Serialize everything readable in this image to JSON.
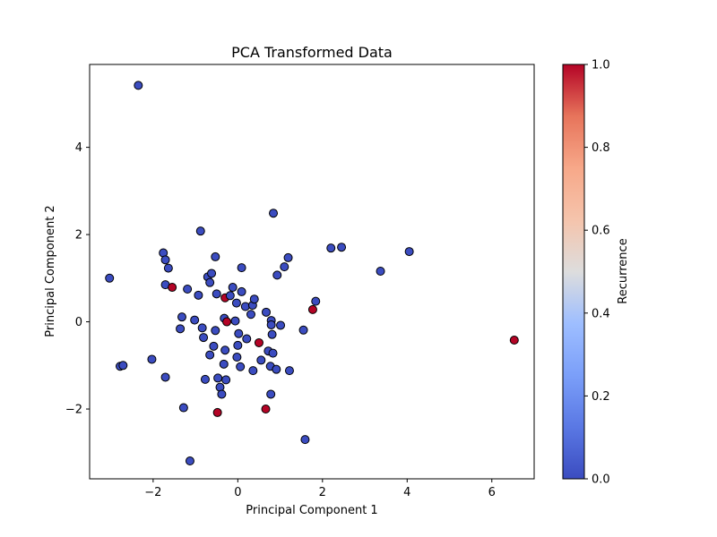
{
  "chart_data": {
    "type": "scatter",
    "title": "PCA Transformed Data",
    "xlabel": "Principal Component 1",
    "ylabel": "Principal Component 2",
    "xlim": [
      -3.5,
      7.0
    ],
    "ylim": [
      -3.6,
      5.9
    ],
    "xticks": [
      -2,
      0,
      2,
      4,
      6
    ],
    "yticks": [
      -2,
      0,
      2,
      4
    ],
    "grid": false,
    "colorbar": {
      "label": "Recurrence",
      "range": [
        0.0,
        1.0
      ],
      "ticks": [
        0.0,
        0.2,
        0.4,
        0.6,
        0.8,
        1.0
      ],
      "colormap": "coolwarm",
      "low_color": "#3b4cc0",
      "mid_color": "#dddddd",
      "high_color": "#b40426"
    },
    "points": [
      {
        "x": -2.35,
        "y": 5.42,
        "c": 0
      },
      {
        "x": -3.03,
        "y": 1.0,
        "c": 0
      },
      {
        "x": -2.78,
        "y": -1.02,
        "c": 0
      },
      {
        "x": -2.71,
        "y": -1.0,
        "c": 0
      },
      {
        "x": -2.03,
        "y": -0.86,
        "c": 0
      },
      {
        "x": -1.76,
        "y": 1.58,
        "c": 0
      },
      {
        "x": -1.71,
        "y": 1.42,
        "c": 0
      },
      {
        "x": -1.64,
        "y": 1.23,
        "c": 0
      },
      {
        "x": -1.71,
        "y": 0.85,
        "c": 0
      },
      {
        "x": -1.55,
        "y": 0.79,
        "c": 1
      },
      {
        "x": -1.71,
        "y": -1.27,
        "c": 0
      },
      {
        "x": -1.28,
        "y": -1.97,
        "c": 0
      },
      {
        "x": -1.13,
        "y": -3.19,
        "c": 0
      },
      {
        "x": -1.32,
        "y": 0.11,
        "c": 0
      },
      {
        "x": -1.36,
        "y": -0.16,
        "c": 0
      },
      {
        "x": -1.19,
        "y": 0.75,
        "c": 0
      },
      {
        "x": -1.02,
        "y": 0.04,
        "c": 0
      },
      {
        "x": -0.93,
        "y": 0.61,
        "c": 0
      },
      {
        "x": -0.88,
        "y": 2.08,
        "c": 0
      },
      {
        "x": -0.84,
        "y": -0.14,
        "c": 0
      },
      {
        "x": -0.81,
        "y": -0.36,
        "c": 0
      },
      {
        "x": -0.77,
        "y": -1.32,
        "c": 0
      },
      {
        "x": -0.71,
        "y": 1.03,
        "c": 0
      },
      {
        "x": -0.62,
        "y": 1.11,
        "c": 0
      },
      {
        "x": -0.66,
        "y": 0.9,
        "c": 0
      },
      {
        "x": -0.66,
        "y": -0.76,
        "c": 0
      },
      {
        "x": -0.57,
        "y": -0.56,
        "c": 0
      },
      {
        "x": -0.53,
        "y": 1.49,
        "c": 0
      },
      {
        "x": -0.5,
        "y": 0.64,
        "c": 0
      },
      {
        "x": -0.53,
        "y": -0.2,
        "c": 0
      },
      {
        "x": -0.47,
        "y": -1.29,
        "c": 0
      },
      {
        "x": -0.48,
        "y": -2.08,
        "c": 1
      },
      {
        "x": -0.42,
        "y": -1.5,
        "c": 0
      },
      {
        "x": -0.38,
        "y": -1.66,
        "c": 0
      },
      {
        "x": -0.33,
        "y": -0.97,
        "c": 0
      },
      {
        "x": -0.3,
        "y": -0.65,
        "c": 0
      },
      {
        "x": -0.32,
        "y": 0.08,
        "c": 0
      },
      {
        "x": -0.3,
        "y": 0.55,
        "c": 1
      },
      {
        "x": -0.26,
        "y": 0.0,
        "c": 1
      },
      {
        "x": -0.28,
        "y": -1.33,
        "c": 0
      },
      {
        "x": -0.18,
        "y": 0.6,
        "c": 0
      },
      {
        "x": -0.12,
        "y": 0.79,
        "c": 0
      },
      {
        "x": -0.06,
        "y": 0.02,
        "c": 0
      },
      {
        "x": -0.03,
        "y": 0.43,
        "c": 0
      },
      {
        "x": -0.02,
        "y": -0.81,
        "c": 0
      },
      {
        "x": 0.0,
        "y": -0.54,
        "c": 0
      },
      {
        "x": 0.02,
        "y": -0.27,
        "c": 0
      },
      {
        "x": 0.06,
        "y": -1.03,
        "c": 0
      },
      {
        "x": 0.09,
        "y": 0.69,
        "c": 0
      },
      {
        "x": 0.09,
        "y": 1.24,
        "c": 0
      },
      {
        "x": 0.18,
        "y": 0.35,
        "c": 0
      },
      {
        "x": 0.21,
        "y": -0.39,
        "c": 0
      },
      {
        "x": 0.31,
        "y": 0.17,
        "c": 0
      },
      {
        "x": 0.35,
        "y": 0.38,
        "c": 0
      },
      {
        "x": 0.39,
        "y": 0.52,
        "c": 0
      },
      {
        "x": 0.36,
        "y": -1.12,
        "c": 0
      },
      {
        "x": 0.5,
        "y": -0.48,
        "c": 1
      },
      {
        "x": 0.55,
        "y": -0.88,
        "c": 0
      },
      {
        "x": 0.67,
        "y": 0.22,
        "c": 0
      },
      {
        "x": 0.66,
        "y": -2.0,
        "c": 1
      },
      {
        "x": 0.72,
        "y": -0.67,
        "c": 0
      },
      {
        "x": 0.79,
        "y": 0.03,
        "c": 0
      },
      {
        "x": 0.79,
        "y": -0.07,
        "c": 0
      },
      {
        "x": 0.81,
        "y": -0.29,
        "c": 0
      },
      {
        "x": 0.83,
        "y": -0.72,
        "c": 0
      },
      {
        "x": 0.77,
        "y": -1.02,
        "c": 0
      },
      {
        "x": 0.78,
        "y": -1.66,
        "c": 0
      },
      {
        "x": 0.84,
        "y": 2.49,
        "c": 0
      },
      {
        "x": 0.93,
        "y": 1.07,
        "c": 0
      },
      {
        "x": 0.91,
        "y": -1.09,
        "c": 0
      },
      {
        "x": 1.01,
        "y": -0.08,
        "c": 0
      },
      {
        "x": 1.1,
        "y": 1.26,
        "c": 0
      },
      {
        "x": 1.19,
        "y": 1.47,
        "c": 0
      },
      {
        "x": 1.22,
        "y": -1.12,
        "c": 0
      },
      {
        "x": 1.55,
        "y": -0.19,
        "c": 0
      },
      {
        "x": 1.59,
        "y": -2.7,
        "c": 0
      },
      {
        "x": 1.77,
        "y": 0.28,
        "c": 1
      },
      {
        "x": 1.84,
        "y": 0.47,
        "c": 0
      },
      {
        "x": 2.2,
        "y": 1.69,
        "c": 0
      },
      {
        "x": 2.45,
        "y": 1.71,
        "c": 0
      },
      {
        "x": 3.37,
        "y": 1.16,
        "c": 0
      },
      {
        "x": 4.05,
        "y": 1.61,
        "c": 0
      },
      {
        "x": 6.53,
        "y": -0.42,
        "c": 1
      }
    ]
  }
}
